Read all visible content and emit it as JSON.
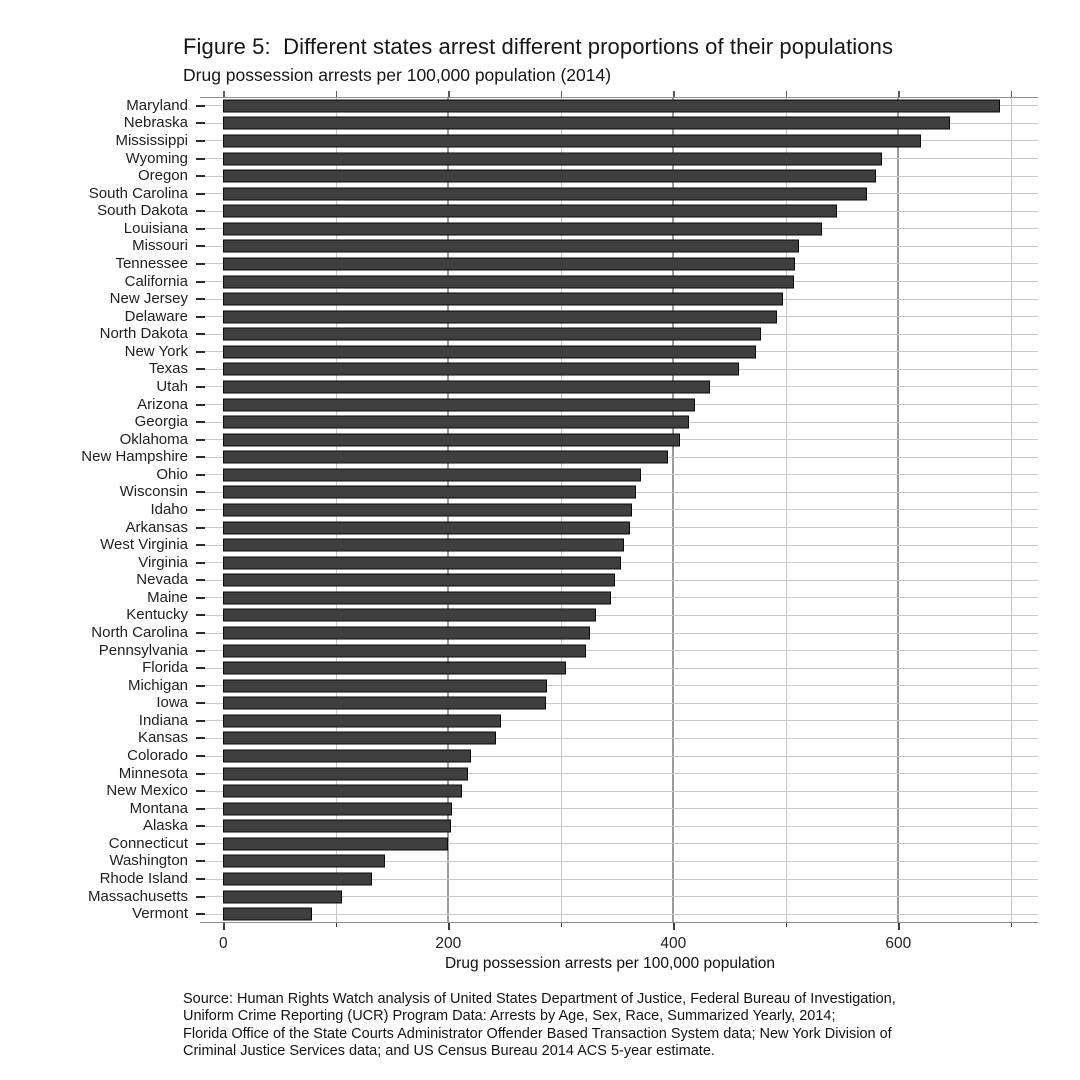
{
  "figure": {
    "title": "Figure 5:  Different states arrest different proportions of their populations",
    "subtitle": "Drug possession arrests per 100,000 population (2014)",
    "xlabel": "Drug possession arrests per 100,000 population",
    "source_lines": [
      "Source: Human Rights Watch analysis of United States Department of Justice, Federal Bureau of Investigation,",
      "Uniform Crime Reporting (UCR) Program Data: Arrests by Age, Sex, Race, Summarized Yearly, 2014;",
      "Florida Office of the State Courts Administrator Offender Based Transaction System data; New York Division of",
      "Criminal Justice Services data; and US Census Bureau 2014 ACS 5-year estimate."
    ]
  },
  "chart_data": {
    "type": "bar",
    "orientation": "horizontal",
    "title": "Figure 5:  Different states arrest different proportions of their populations",
    "subtitle": "Drug possession arrests per 100,000 population (2014)",
    "xlabel": "Drug possession arrests per 100,000 population",
    "ylabel": "",
    "xlim": [
      0,
      724
    ],
    "x_major_ticks": [
      0,
      200,
      400,
      600
    ],
    "x_minor_ticks": [
      100,
      300,
      500,
      700
    ],
    "grid": true,
    "legend": "none",
    "bar_color": "#3f3f3f",
    "bar_border_color": "#0a0a0a",
    "categories": [
      "Maryland",
      "Nebraska",
      "Mississippi",
      "Wyoming",
      "Oregon",
      "South Carolina",
      "South Dakota",
      "Louisiana",
      "Missouri",
      "Tennessee",
      "California",
      "New Jersey",
      "Delaware",
      "North Dakota",
      "New York",
      "Texas",
      "Utah",
      "Arizona",
      "Georgia",
      "Oklahoma",
      "New Hampshire",
      "Ohio",
      "Wisconsin",
      "Idaho",
      "Arkansas",
      "West Virginia",
      "Virginia",
      "Nevada",
      "Maine",
      "Kentucky",
      "North Carolina",
      "Pennsylvania",
      "Florida",
      "Michigan",
      "Iowa",
      "Indiana",
      "Kansas",
      "Colorado",
      "Minnesota",
      "New Mexico",
      "Montana",
      "Alaska",
      "Connecticut",
      "Washington",
      "Rhode Island",
      "Massachusetts",
      "Vermont"
    ],
    "values": [
      689,
      644,
      619,
      584,
      579,
      571,
      544,
      531,
      510,
      507,
      506,
      496,
      491,
      476,
      472,
      457,
      431,
      418,
      412,
      404,
      394,
      370,
      365,
      362,
      360,
      355,
      352,
      347,
      343,
      330,
      324,
      321,
      303,
      286,
      285,
      245,
      241,
      219,
      216,
      211,
      202,
      201,
      198,
      142,
      131,
      104,
      77
    ]
  },
  "colors": {
    "background": "#ffffff",
    "row_gridline": "#c9c9c9",
    "minor_gridline": "#c7c7c7",
    "major_gridline": "#9b9b9b",
    "axis_line": "#8f8f8f",
    "tick": "#2b2b2b",
    "text": "#161616"
  }
}
